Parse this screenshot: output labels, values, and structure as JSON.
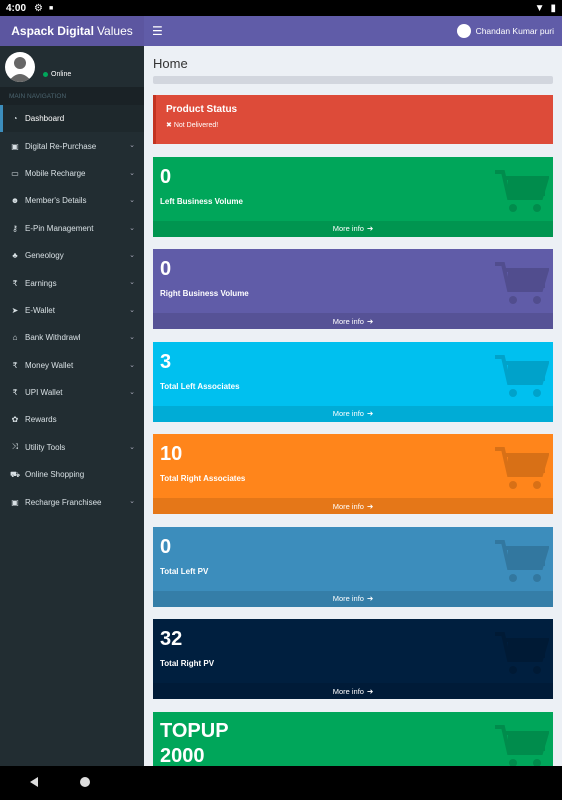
{
  "statusbar": {
    "time": "4:00"
  },
  "app": {
    "brand_bold": "Aspack Digital",
    "brand_rest": "Values"
  },
  "userpanel": {
    "status": "Online"
  },
  "topbar": {
    "user_name": "Chandan Kumar puri"
  },
  "sidebar": {
    "header": "MAIN NAVIGATION",
    "items": [
      {
        "label": "Dashboard",
        "icon": "dashboard-icon",
        "glyph": "◔",
        "submenu": false,
        "active": true
      },
      {
        "label": "Digital Re-Purchase",
        "icon": "briefcase-icon",
        "glyph": "▣",
        "submenu": true
      },
      {
        "label": "Mobile Recharge",
        "icon": "battery-icon",
        "glyph": "▭",
        "submenu": true
      },
      {
        "label": "Member's Details",
        "icon": "users-icon",
        "glyph": "☻",
        "submenu": true
      },
      {
        "label": "E-Pin Management",
        "icon": "key-icon",
        "glyph": "⚷",
        "submenu": true
      },
      {
        "label": "Geneology",
        "icon": "sitemap-icon",
        "glyph": "♣",
        "submenu": true
      },
      {
        "label": "Earnings",
        "icon": "rupee-icon",
        "glyph": "₹",
        "submenu": true
      },
      {
        "label": "E-Wallet",
        "icon": "send-icon",
        "glyph": "➤",
        "submenu": true
      },
      {
        "label": "Bank Withdrawl",
        "icon": "bank-icon",
        "glyph": "⌂",
        "submenu": true
      },
      {
        "label": "Money Wallet",
        "icon": "rupee-icon",
        "glyph": "₹",
        "submenu": true
      },
      {
        "label": "UPI Wallet",
        "icon": "rupee-icon",
        "glyph": "₹",
        "submenu": true
      },
      {
        "label": "Rewards",
        "icon": "gift-icon",
        "glyph": "✿",
        "submenu": false
      },
      {
        "label": "Utility Tools",
        "icon": "random-icon",
        "glyph": "⤨",
        "submenu": true
      },
      {
        "label": "Online Shopping",
        "icon": "cart-icon",
        "glyph": "⛟",
        "submenu": false
      },
      {
        "label": "Recharge Franchisee",
        "icon": "briefcase-icon",
        "glyph": "▣",
        "submenu": true
      }
    ]
  },
  "content": {
    "title": "Home",
    "status": {
      "heading": "Product Status",
      "text": "Not Delivered!"
    },
    "more_info": "More info",
    "boxes": [
      {
        "value": "0",
        "label": "Left Business Volume"
      },
      {
        "value": "0",
        "label": "Right Business Volume"
      },
      {
        "value": "3",
        "label": "Total Left Associates"
      },
      {
        "value": "10",
        "label": "Total Right Associates"
      },
      {
        "value": "0",
        "label": "Total Left PV"
      },
      {
        "value": "32",
        "label": "Total Right PV"
      },
      {
        "value_line1": "TOPUP",
        "value_line2": "2000"
      }
    ]
  },
  "colors": {
    "sidebar": "#222d32",
    "topbar": "#605ca8",
    "danger": "#dd4b39",
    "green": "#00a65a",
    "purple": "#605ca8",
    "aqua": "#00c0ef",
    "orange": "#ff851b",
    "blue": "#3c8dbc",
    "navy": "#001f3f"
  }
}
